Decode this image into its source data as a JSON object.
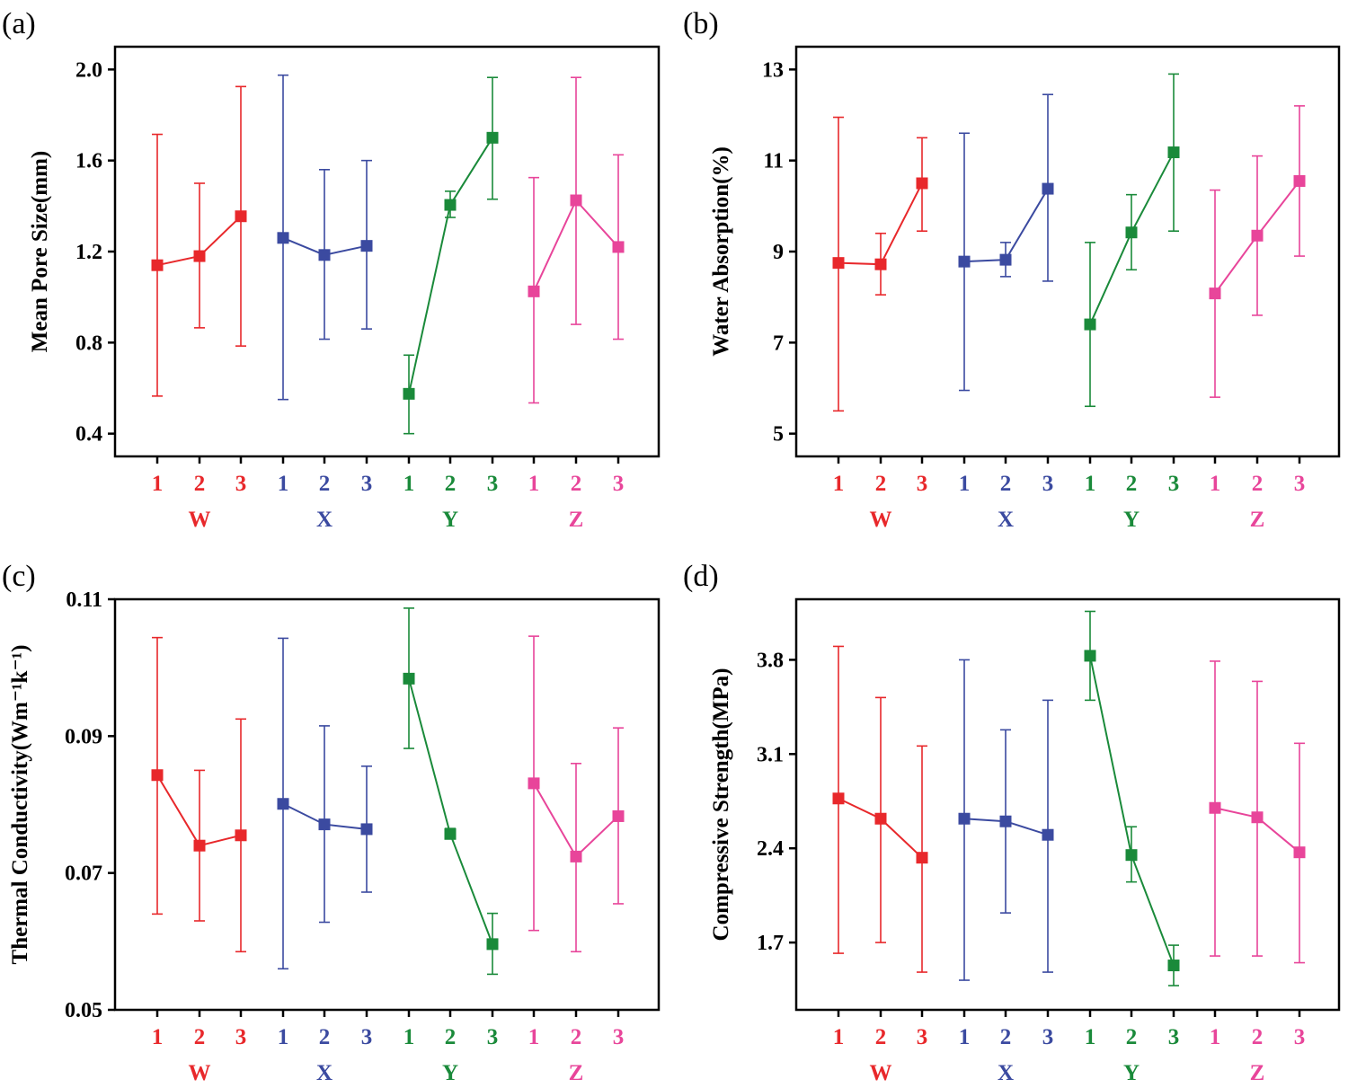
{
  "chart_data": [
    {
      "panel": "(a)",
      "type": "line",
      "ylabel": "Mean Pore Size(mm)",
      "ylim": [
        0.3,
        2.1
      ],
      "yticks": [
        0.4,
        0.8,
        1.2,
        1.6,
        2.0
      ],
      "ytick_labels": [
        "0.4",
        "0.8",
        "1.2",
        "1.6",
        "2.0"
      ],
      "categories": [
        "1",
        "2",
        "3"
      ],
      "series": [
        {
          "name": "W",
          "color": "#e8282b",
          "values": [
            1.14,
            1.18,
            1.355
          ],
          "err_low": [
            0.565,
            0.865,
            0.785
          ],
          "err_high": [
            1.715,
            1.5,
            1.925
          ]
        },
        {
          "name": "X",
          "color": "#3b4aa0",
          "values": [
            1.26,
            1.185,
            1.225
          ],
          "err_low": [
            0.55,
            0.815,
            0.86
          ],
          "err_high": [
            1.975,
            1.56,
            1.6
          ]
        },
        {
          "name": "Y",
          "color": "#1a8a3a",
          "values": [
            0.575,
            1.405,
            1.7
          ],
          "err_low": [
            0.4,
            1.35,
            1.43
          ],
          "err_high": [
            0.745,
            1.465,
            1.965
          ]
        },
        {
          "name": "Z",
          "color": "#e8459a",
          "values": [
            1.025,
            1.425,
            1.22
          ],
          "err_low": [
            0.535,
            0.88,
            0.815
          ],
          "err_high": [
            1.525,
            1.965,
            1.625
          ]
        }
      ]
    },
    {
      "panel": "(b)",
      "type": "line",
      "ylabel": "Water Absorption(%)",
      "ylim": [
        4.5,
        13.5
      ],
      "yticks": [
        5,
        7,
        9,
        11,
        13
      ],
      "ytick_labels": [
        "5",
        "7",
        "9",
        "11",
        "13"
      ],
      "categories": [
        "1",
        "2",
        "3"
      ],
      "series": [
        {
          "name": "W",
          "color": "#e8282b",
          "values": [
            8.75,
            8.72,
            10.5
          ],
          "err_low": [
            5.5,
            8.05,
            9.45
          ],
          "err_high": [
            11.95,
            9.4,
            11.5
          ]
        },
        {
          "name": "X",
          "color": "#3b4aa0",
          "values": [
            8.78,
            8.82,
            10.38
          ],
          "err_low": [
            5.95,
            8.45,
            8.35
          ],
          "err_high": [
            11.6,
            9.2,
            12.45
          ]
        },
        {
          "name": "Y",
          "color": "#1a8a3a",
          "values": [
            7.4,
            9.42,
            11.18
          ],
          "err_low": [
            5.6,
            8.6,
            9.45
          ],
          "err_high": [
            9.2,
            10.25,
            12.9
          ]
        },
        {
          "name": "Z",
          "color": "#e8459a",
          "values": [
            8.08,
            9.35,
            10.55
          ],
          "err_low": [
            5.8,
            7.6,
            8.9
          ],
          "err_high": [
            10.35,
            11.1,
            12.2
          ]
        }
      ]
    },
    {
      "panel": "(c)",
      "type": "line",
      "ylabel": "Thermal Conductivity(Wm⁻¹k⁻¹)",
      "ylim": [
        0.05,
        0.11
      ],
      "yticks": [
        0.05,
        0.07,
        0.09,
        0.11
      ],
      "ytick_labels": [
        "0.05",
        "0.07",
        "0.09",
        "0.11"
      ],
      "categories": [
        "1",
        "2",
        "3"
      ],
      "series": [
        {
          "name": "W",
          "color": "#e8282b",
          "values": [
            0.0843,
            0.074,
            0.0755
          ],
          "err_low": [
            0.064,
            0.063,
            0.0585
          ],
          "err_high": [
            0.1044,
            0.085,
            0.0925
          ]
        },
        {
          "name": "X",
          "color": "#3b4aa0",
          "values": [
            0.0801,
            0.0771,
            0.0764
          ],
          "err_low": [
            0.056,
            0.0628,
            0.0672
          ],
          "err_high": [
            0.1043,
            0.0915,
            0.0856
          ]
        },
        {
          "name": "Y",
          "color": "#1a8a3a",
          "values": [
            0.0984,
            0.0757,
            0.0596
          ],
          "err_low": [
            0.0882,
            0.075,
            0.0552
          ],
          "err_high": [
            0.1087,
            0.0765,
            0.0641
          ]
        },
        {
          "name": "Z",
          "color": "#e8459a",
          "values": [
            0.0831,
            0.0724,
            0.0783
          ],
          "err_low": [
            0.0616,
            0.0585,
            0.0655
          ],
          "err_high": [
            0.1046,
            0.086,
            0.0912
          ]
        }
      ]
    },
    {
      "panel": "(d)",
      "type": "line",
      "ylabel": "Compressive Strength(MPa)",
      "ylim": [
        1.2,
        4.25
      ],
      "yticks": [
        1.7,
        2.4,
        3.1,
        3.8
      ],
      "ytick_labels": [
        "1.7",
        "2.4",
        "3.1",
        "3.8"
      ],
      "categories": [
        "1",
        "2",
        "3"
      ],
      "series": [
        {
          "name": "W",
          "color": "#e8282b",
          "values": [
            2.77,
            2.62,
            2.33
          ],
          "err_low": [
            1.62,
            1.7,
            1.48
          ],
          "err_high": [
            3.9,
            3.52,
            3.16
          ]
        },
        {
          "name": "X",
          "color": "#3b4aa0",
          "values": [
            2.62,
            2.6,
            2.5
          ],
          "err_low": [
            1.42,
            1.92,
            1.48
          ],
          "err_high": [
            3.8,
            3.28,
            3.5
          ]
        },
        {
          "name": "Y",
          "color": "#1a8a3a",
          "values": [
            3.83,
            2.35,
            1.53
          ],
          "err_low": [
            3.5,
            2.15,
            1.38
          ],
          "err_high": [
            4.16,
            2.56,
            1.68
          ]
        },
        {
          "name": "Z",
          "color": "#e8459a",
          "values": [
            2.7,
            2.63,
            2.37
          ],
          "err_low": [
            1.6,
            1.6,
            1.55
          ],
          "err_high": [
            3.79,
            3.64,
            3.18
          ]
        }
      ]
    }
  ]
}
